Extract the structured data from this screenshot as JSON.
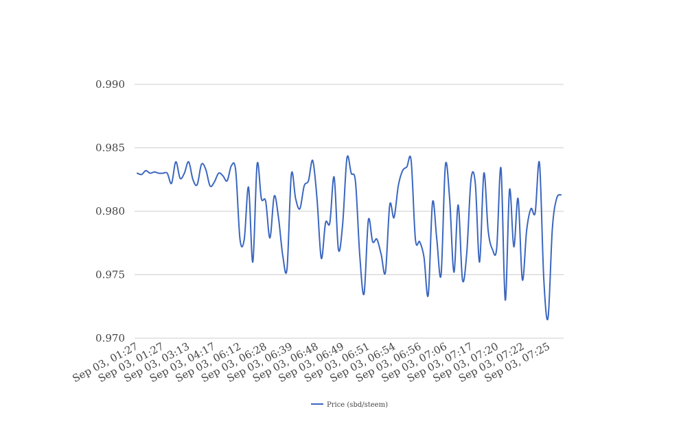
{
  "chart_data": {
    "type": "line",
    "title": "",
    "xlabel": "",
    "ylabel": "",
    "ylim": [
      0.97,
      0.99
    ],
    "grid": true,
    "legend_position": "bottom",
    "yticks": [
      "0.970",
      "0.975",
      "0.980",
      "0.985",
      "0.990"
    ],
    "x_tick_labels": [
      "Sep 03, 01:27",
      "Sep 03, 01:27",
      "Sep 03, 03:13",
      "Sep 03, 04:17",
      "Sep 03, 06:12",
      "Sep 03, 06:28",
      "Sep 03, 06:39",
      "Sep 03, 06:48",
      "Sep 03, 06:49",
      "Sep 03, 06:51",
      "Sep 03, 06:54",
      "Sep 03, 06:56",
      "Sep 03, 07:06",
      "Sep 03, 07:17",
      "Sep 03, 07:20",
      "Sep 03, 07:22",
      "Sep 03, 07:25"
    ],
    "series": [
      {
        "name": "Price (sbd/steem)",
        "color": "#3a66bf",
        "values": [
          0.983,
          0.9829,
          0.9832,
          0.983,
          0.9831,
          0.983,
          0.983,
          0.983,
          0.9822,
          0.9839,
          0.9826,
          0.983,
          0.9839,
          0.9825,
          0.9821,
          0.9837,
          0.9833,
          0.982,
          0.9823,
          0.983,
          0.9828,
          0.9824,
          0.9836,
          0.9832,
          0.9778,
          0.9778,
          0.9819,
          0.976,
          0.9837,
          0.981,
          0.9808,
          0.9779,
          0.9812,
          0.9795,
          0.9765,
          0.9755,
          0.9829,
          0.981,
          0.9802,
          0.982,
          0.9824,
          0.984,
          0.981,
          0.9763,
          0.9791,
          0.9791,
          0.9827,
          0.977,
          0.979,
          0.9842,
          0.983,
          0.9823,
          0.9765,
          0.9735,
          0.9793,
          0.9776,
          0.9778,
          0.9766,
          0.9752,
          0.9805,
          0.9795,
          0.982,
          0.9832,
          0.9835,
          0.984,
          0.9778,
          0.9776,
          0.9764,
          0.9734,
          0.9807,
          0.9778,
          0.975,
          0.9836,
          0.981,
          0.9752,
          0.9805,
          0.9746,
          0.9767,
          0.9825,
          0.9822,
          0.976,
          0.983,
          0.9785,
          0.977,
          0.9771,
          0.9834,
          0.973,
          0.9817,
          0.9772,
          0.981,
          0.9746,
          0.9785,
          0.9802,
          0.9799,
          0.9838,
          0.9747,
          0.9716,
          0.9786,
          0.981,
          0.9813
        ]
      }
    ]
  }
}
